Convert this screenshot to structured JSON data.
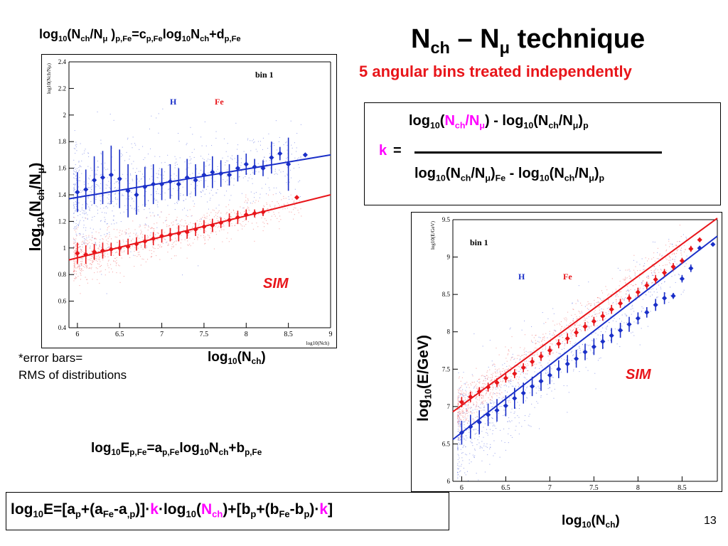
{
  "slide": {
    "title_main": "N",
    "title_sub1": "ch",
    "title_dash": " – N",
    "title_sub2": "μ",
    "title_rest": " technique",
    "subtitle": "5 angular bins treated independently",
    "page_number": "13",
    "colors": {
      "accent_red": "#e8151a",
      "accent_magenta": "#ff00ff",
      "H_blue": "#1a2fc8",
      "Fe_red": "#e8151a"
    }
  },
  "formulas": {
    "top_left": {
      "a": "log",
      "a_sub": "10",
      "b": "(N",
      "b_sub": "ch",
      "c": "/N",
      "c_sub": "μ",
      "d": " )",
      "d_sub": "p,Fe",
      "e": "=c",
      "e_sub": "p,Fe",
      "f": "log",
      "f_sub": "10",
      "g": "N",
      "g_sub": "ch",
      "h": "+d",
      "h_sub": "p,Fe"
    },
    "middle": {
      "a": "log",
      "a_sub": "10",
      "b": "E",
      "b_sub": "p,Fe",
      "c": "=a",
      "c_sub": "p,Fe",
      "d": "log",
      "d_sub": "10",
      "e": "N",
      "e_sub": "ch",
      "f": "+b",
      "f_sub": "p,Fe"
    },
    "k_box": {
      "k": "k",
      "eq": "=",
      "num_a": "log",
      "num_a_sub": "10",
      "num_b": "(",
      "num_c": "N",
      "num_c_sub": "ch",
      "num_d": "/N",
      "num_d_sub": "μ",
      "num_e": ") - log",
      "num_e_sub": "10",
      "num_f": "(N",
      "num_f_sub": "ch",
      "num_g": "/N",
      "num_g_sub": "μ",
      "num_h": ")",
      "num_h_sub": "p",
      "den_a": "log",
      "den_a_sub": "10",
      "den_b": "(N",
      "den_b_sub": "ch",
      "den_c": "/N",
      "den_c_sub": "μ",
      "den_d": ")",
      "den_d_sub": "Fe",
      "den_e": " - log",
      "den_e_sub": "10",
      "den_f": "(N",
      "den_f_sub": "ch",
      "den_g": "/N",
      "den_g_sub": "μ",
      "den_h": ")",
      "den_h_sub": "p"
    },
    "bottom": {
      "a": "log",
      "a_sub": "10",
      "b": "E=[a",
      "b_sub": "p",
      "c": "+(a",
      "c_sub": "Fe",
      "d": "-a",
      "d_sub": ",p",
      "e": ")]·",
      "k1": "k",
      "f": "·log",
      "f_sub": "10",
      "g": "(",
      "h": "N",
      "h_sub": "ch",
      "i": ")+[b",
      "i_sub": "p",
      "j": "+(b",
      "j_sub": "Fe",
      "l": "-b",
      "l_sub": "p",
      "m": ")·",
      "k2": "k",
      "n": "]"
    }
  },
  "notes": {
    "error_bars_line1": "*error bars=",
    "error_bars_line2": "RMS of distributions"
  },
  "labels": {
    "left_ylabel": "log",
    "left_ylabel_sub": "10",
    "left_ylabel_b": "(N",
    "left_ylabel_sub2": "ch",
    "left_ylabel_c": "/N",
    "left_ylabel_sub3": "μ",
    "left_ylabel_d": ")",
    "left_xlabel": "log",
    "left_xlabel_sub": "10",
    "left_xlabel_b": "(N",
    "left_xlabel_sub2": "ch",
    "left_xlabel_c": ")",
    "right_ylabel": "log",
    "right_ylabel_sub": "10",
    "right_ylabel_b": "(E/GeV)",
    "right_xlabel": "log",
    "right_xlabel_sub": "10",
    "right_xlabel_b": "(N",
    "right_xlabel_sub2": "ch",
    "right_xlabel_c": ")",
    "sim": "SIM"
  },
  "chart_data": [
    {
      "type": "scatter",
      "ylabel_small": "log10(Nch/Nμ)",
      "xlabel_small": "log10(Nch)",
      "bin_label": "bin 1",
      "legend": [
        "H",
        "Fe"
      ],
      "xlim": [
        5.9,
        9
      ],
      "ylim": [
        0.4,
        2.4
      ],
      "xticks": [
        6,
        6.5,
        7,
        7.5,
        8,
        8.5,
        9
      ],
      "xtick_labels": [
        "6",
        "6.5",
        "7",
        "7.5",
        "8",
        "8.5",
        "9"
      ],
      "yticks": [
        0.4,
        0.6,
        0.8,
        1,
        1.2,
        1.4,
        1.6,
        1.8,
        2,
        2.2,
        2.4
      ],
      "ytick_labels": [
        "0.4",
        "0.6",
        "0.8",
        "1",
        "1.2",
        "1.4",
        "1.6",
        "1.8",
        "2",
        "2.2",
        "2.4"
      ],
      "series": [
        {
          "name": "H",
          "x": [
            6.0,
            6.1,
            6.2,
            6.3,
            6.4,
            6.5,
            6.6,
            6.7,
            6.8,
            6.9,
            7.0,
            7.1,
            7.2,
            7.3,
            7.4,
            7.5,
            7.6,
            7.7,
            7.8,
            7.9,
            8.0,
            8.1,
            8.2,
            8.3,
            8.4,
            8.5,
            8.7
          ],
          "y": [
            1.42,
            1.44,
            1.51,
            1.53,
            1.55,
            1.52,
            1.43,
            1.4,
            1.46,
            1.48,
            1.48,
            1.5,
            1.48,
            1.53,
            1.51,
            1.55,
            1.57,
            1.56,
            1.55,
            1.6,
            1.63,
            1.61,
            1.6,
            1.68,
            1.71,
            1.63,
            1.7
          ],
          "err": [
            0.15,
            0.15,
            0.18,
            0.2,
            0.22,
            0.22,
            0.2,
            0.15,
            0.15,
            0.15,
            0.12,
            0.13,
            0.12,
            0.14,
            0.12,
            0.1,
            0.12,
            0.1,
            0.08,
            0.1,
            0.08,
            0.06,
            0.06,
            0.12,
            0.05,
            0.2,
            0.01
          ],
          "fit": {
            "x": [
              5.9,
              9.0
            ],
            "y": [
              1.37,
              1.7
            ]
          }
        },
        {
          "name": "Fe",
          "x": [
            6.0,
            6.1,
            6.2,
            6.3,
            6.4,
            6.5,
            6.6,
            6.7,
            6.8,
            6.9,
            7.0,
            7.1,
            7.2,
            7.3,
            7.4,
            7.5,
            7.6,
            7.7,
            7.8,
            7.9,
            8.0,
            8.1,
            8.2,
            8.6
          ],
          "y": [
            0.96,
            0.95,
            0.97,
            0.98,
            0.99,
            1.0,
            1.01,
            1.03,
            1.05,
            1.07,
            1.09,
            1.1,
            1.11,
            1.12,
            1.14,
            1.16,
            1.17,
            1.19,
            1.21,
            1.23,
            1.25,
            1.26,
            1.27,
            1.38
          ],
          "err": [
            0.08,
            0.07,
            0.06,
            0.06,
            0.05,
            0.06,
            0.06,
            0.05,
            0.05,
            0.05,
            0.05,
            0.05,
            0.06,
            0.05,
            0.05,
            0.05,
            0.05,
            0.04,
            0.05,
            0.05,
            0.04,
            0.03,
            0.03,
            0.0
          ],
          "fit": {
            "x": [
              5.9,
              9.0
            ],
            "y": [
              0.91,
              1.4
            ]
          }
        }
      ]
    },
    {
      "type": "scatter",
      "ylabel_small": "log10(E/GeV)",
      "xlabel_small": "log10(Nch)",
      "bin_label": "bin 1",
      "legend": [
        "H",
        "Fe"
      ],
      "xlim": [
        5.9,
        8.9
      ],
      "ylim": [
        6,
        9.5
      ],
      "xticks": [
        6,
        6.5,
        7,
        7.5,
        8,
        8.5
      ],
      "xtick_labels": [
        "6",
        "6.5",
        "7",
        "7.5",
        "8",
        "8.5"
      ],
      "yticks": [
        6,
        6.5,
        7,
        7.5,
        8,
        8.5,
        9,
        9.5
      ],
      "ytick_labels": [
        "6",
        "6.5",
        "7",
        "7.5",
        "8",
        "8.5",
        "9",
        "9.5"
      ],
      "series": [
        {
          "name": "H",
          "x": [
            6.0,
            6.1,
            6.2,
            6.3,
            6.4,
            6.5,
            6.6,
            6.7,
            6.8,
            6.9,
            7.0,
            7.1,
            7.2,
            7.3,
            7.4,
            7.5,
            7.6,
            7.7,
            7.8,
            7.9,
            8.0,
            8.1,
            8.2,
            8.3,
            8.4,
            8.5,
            8.6,
            8.7,
            8.85
          ],
          "y": [
            6.65,
            6.73,
            6.79,
            6.89,
            6.95,
            7.01,
            7.11,
            7.18,
            7.27,
            7.34,
            7.42,
            7.5,
            7.57,
            7.64,
            7.73,
            7.8,
            7.87,
            7.95,
            8.02,
            8.1,
            8.18,
            8.26,
            8.36,
            8.45,
            8.48,
            8.71,
            8.85,
            9.12,
            9.17
          ],
          "err": [
            0.16,
            0.16,
            0.16,
            0.15,
            0.15,
            0.14,
            0.14,
            0.14,
            0.13,
            0.13,
            0.12,
            0.12,
            0.12,
            0.12,
            0.11,
            0.11,
            0.1,
            0.1,
            0.1,
            0.1,
            0.08,
            0.07,
            0.08,
            0.08,
            0.04,
            0.05,
            0.05,
            0.03,
            0.02
          ],
          "fit": {
            "x": [
              5.9,
              8.9
            ],
            "y": [
              6.56,
              9.28
            ]
          }
        },
        {
          "name": "Fe",
          "x": [
            6.0,
            6.1,
            6.2,
            6.3,
            6.4,
            6.5,
            6.6,
            6.7,
            6.8,
            6.9,
            7.0,
            7.1,
            7.2,
            7.3,
            7.4,
            7.5,
            7.6,
            7.7,
            7.8,
            7.9,
            8.0,
            8.1,
            8.2,
            8.3,
            8.4,
            8.5,
            8.6,
            8.7
          ],
          "y": [
            7.06,
            7.13,
            7.2,
            7.26,
            7.32,
            7.38,
            7.44,
            7.52,
            7.6,
            7.67,
            7.75,
            7.84,
            7.91,
            7.99,
            8.07,
            8.14,
            8.21,
            8.3,
            8.38,
            8.45,
            8.53,
            8.62,
            8.7,
            8.79,
            8.87,
            8.95,
            9.11,
            9.23
          ],
          "err": [
            0.07,
            0.07,
            0.06,
            0.06,
            0.06,
            0.06,
            0.06,
            0.06,
            0.06,
            0.06,
            0.06,
            0.06,
            0.07,
            0.06,
            0.06,
            0.06,
            0.06,
            0.06,
            0.06,
            0.05,
            0.06,
            0.05,
            0.06,
            0.05,
            0.05,
            0.04,
            0.04,
            0.03
          ],
          "fit": {
            "x": [
              5.9,
              8.9
            ],
            "y": [
              6.93,
              9.52
            ]
          }
        }
      ]
    }
  ]
}
